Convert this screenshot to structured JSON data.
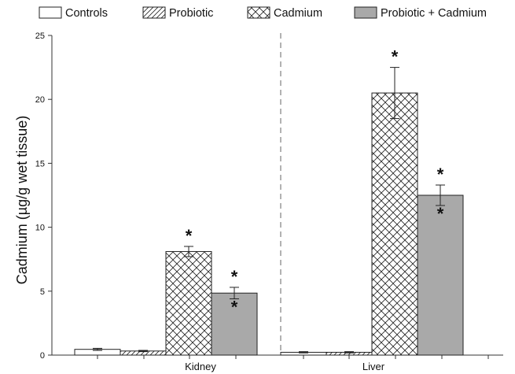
{
  "chart_data": {
    "type": "bar",
    "ylabel": "Cadmium (µg/g wet tissue)",
    "xlabel": "",
    "ylim": [
      0,
      25
    ],
    "yticks": [
      0,
      5,
      10,
      15,
      20,
      25
    ],
    "grid": false,
    "legend_placement": "top",
    "categories": [
      "Kidney",
      "Liver"
    ],
    "series": [
      {
        "name": "Controls",
        "pattern": "none",
        "color": "#ffffff",
        "values": [
          0.45,
          0.22
        ],
        "errors": [
          0.08,
          0.05
        ]
      },
      {
        "name": "Probiotic",
        "pattern": "diagonal-hatch",
        "color": "#ffffff",
        "values": [
          0.32,
          0.22
        ],
        "errors": [
          0.05,
          0.05
        ]
      },
      {
        "name": "Cadmium",
        "pattern": "crosshatch",
        "color": "#ffffff",
        "values": [
          8.1,
          20.5
        ],
        "errors": [
          0.4,
          2.0
        ]
      },
      {
        "name": "Probiotic + Cadmium",
        "pattern": "solid",
        "color": "#a9a9a9",
        "values": [
          4.85,
          12.5
        ],
        "errors": [
          0.45,
          0.8
        ]
      }
    ],
    "annotations": [
      {
        "text": "*",
        "category": "Kidney",
        "series": "Cadmium",
        "where": "above"
      },
      {
        "text": "*",
        "category": "Kidney",
        "series": "Probiotic + Cadmium",
        "where": "above"
      },
      {
        "text": "*",
        "category": "Kidney",
        "series": "Probiotic + Cadmium",
        "where": "below"
      },
      {
        "text": "*",
        "category": "Liver",
        "series": "Cadmium",
        "where": "above"
      },
      {
        "text": "*",
        "category": "Liver",
        "series": "Probiotic + Cadmium",
        "where": "above"
      },
      {
        "text": "*",
        "category": "Liver",
        "series": "Probiotic + Cadmium",
        "where": "below"
      }
    ],
    "separator": "dashed-vertical"
  }
}
